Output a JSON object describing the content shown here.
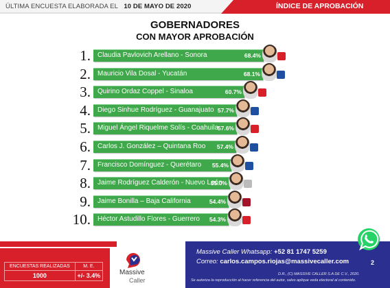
{
  "header": {
    "date_prefix": "ÚLTIMA ENCUESTA ELABORADA EL",
    "date": "10 DE MAYO DE 2020",
    "index_label": "ÍNDICE DE APROBACIÓN"
  },
  "chart_data": {
    "type": "bar",
    "title": "GOBERNADORES",
    "subtitle": "CON MAYOR APROBACIÓN",
    "categories": [
      "Claudia Pavlovich Arellano - Sonora",
      "Mauricio Vila Dosal - Yucatán",
      "Quirino Ordaz Coppel - Sinaloa",
      "Diego Sinhue Rodríguez - Guanajuato",
      "Miguel Ángel Riquelme Solís - Coahuila",
      "Carlos J. González – Quintana Roo",
      "Francisco Domínguez - Querétaro",
      "Jaime Rodríguez Calderón - Nuevo León",
      "Jaime Bonilla – Baja California",
      "Héctor Astudillo Flores - Guerrero"
    ],
    "ranks": [
      "1.",
      "2.",
      "3.",
      "4.",
      "5.",
      "6.",
      "7.",
      "8.",
      "9.",
      "10."
    ],
    "values": [
      68.4,
      68.1,
      60.7,
      57.7,
      57.6,
      57.4,
      55.4,
      55.0,
      54.4,
      54.3
    ],
    "value_labels": [
      "68.4%",
      "68.1%",
      "60.7%",
      "57.7%",
      "57.6%",
      "57.4%",
      "55.4%",
      "55.0%",
      "54.4%",
      "54.3%"
    ],
    "party_icons": [
      "pri-icon",
      "pan-icon",
      "pri-icon",
      "pan-icon",
      "pri-icon",
      "pan-icon",
      "pan-icon",
      "independent-icon",
      "morena-icon",
      "pri-icon"
    ],
    "bar_color": "#3fa84a"
  },
  "footer": {
    "table_header_left": "ENCUESTAS REALIZADAS",
    "table_header_right": "M. E.",
    "encuestas": "1000",
    "margin_error": "+/- 3.4%",
    "brand": "Massive",
    "brand_sub": "Caller",
    "whatsapp_label": "Massive Caller Whatsapp:",
    "whatsapp_number": "+52   81 1747 5259",
    "email_label": "Correo:",
    "email": "carlos.campos.riojas@massivecaller.com",
    "page": "2",
    "legal_1": "D.R., (C) MASSIVE CALLER S.A DE C.V., 2020.",
    "legal_2": "Se autoriza la reproducción al hacer referencia del autor, salvo aplique veda electoral al contenido."
  },
  "colors": {
    "red": "#d8202b",
    "blue": "#2b2f8f",
    "green": "#3fa84a",
    "pri": "#d8202b",
    "pan": "#1f4fa0",
    "morena": "#a3142b"
  }
}
